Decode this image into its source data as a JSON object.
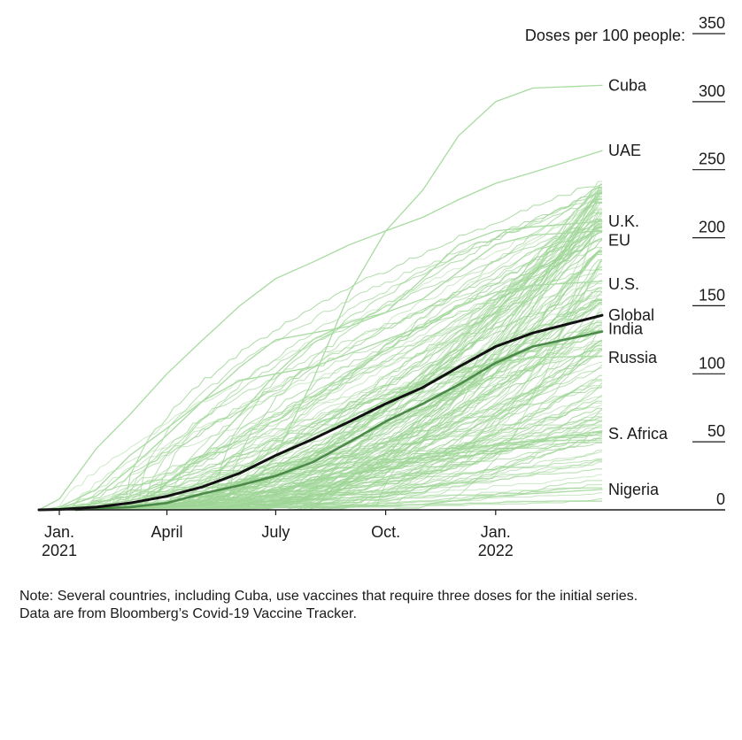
{
  "chart_data": {
    "type": "line",
    "ylabel": "Doses per 100 people:",
    "ylim": [
      0,
      350
    ],
    "y_ticks": [
      "0",
      "50",
      "100",
      "150",
      "200",
      "250",
      "300",
      "350"
    ],
    "x_range": [
      "2020-12-15",
      "2022-03-31"
    ],
    "x_ticks": [
      {
        "date": "2021-01-01",
        "line1": "Jan.",
        "line2": "2021"
      },
      {
        "date": "2021-04-01",
        "line1": "April",
        "line2": ""
      },
      {
        "date": "2021-07-01",
        "line1": "July",
        "line2": ""
      },
      {
        "date": "2021-10-01",
        "line1": "Oct.",
        "line2": ""
      },
      {
        "date": "2022-01-01",
        "line1": "Jan.",
        "line2": "2022"
      }
    ],
    "series": [
      {
        "name": "Cuba",
        "color": "#a8dba1",
        "points": [
          [
            "2021-05-15",
            0
          ],
          [
            "2021-06-01",
            8
          ],
          [
            "2021-07-01",
            40
          ],
          [
            "2021-08-01",
            95
          ],
          [
            "2021-09-01",
            160
          ],
          [
            "2021-10-01",
            205
          ],
          [
            "2021-11-01",
            235
          ],
          [
            "2021-12-01",
            275
          ],
          [
            "2022-01-01",
            300
          ],
          [
            "2022-02-01",
            310
          ],
          [
            "2022-03-31",
            312
          ]
        ]
      },
      {
        "name": "UAE",
        "color": "#a8dba1",
        "points": [
          [
            "2020-12-15",
            0
          ],
          [
            "2021-01-01",
            8
          ],
          [
            "2021-02-01",
            45
          ],
          [
            "2021-03-01",
            70
          ],
          [
            "2021-04-01",
            100
          ],
          [
            "2021-05-01",
            125
          ],
          [
            "2021-06-01",
            150
          ],
          [
            "2021-07-01",
            170
          ],
          [
            "2021-08-01",
            182
          ],
          [
            "2021-09-01",
            195
          ],
          [
            "2021-10-01",
            205
          ],
          [
            "2021-11-01",
            215
          ],
          [
            "2021-12-01",
            228
          ],
          [
            "2022-01-01",
            240
          ],
          [
            "2022-02-01",
            248
          ],
          [
            "2022-03-31",
            264
          ]
        ]
      },
      {
        "name": "U.K.",
        "color": "#a8dba1",
        "points": [
          [
            "2020-12-15",
            0
          ],
          [
            "2021-01-01",
            2
          ],
          [
            "2021-02-01",
            15
          ],
          [
            "2021-03-01",
            40
          ],
          [
            "2021-04-01",
            60
          ],
          [
            "2021-05-01",
            80
          ],
          [
            "2021-06-01",
            105
          ],
          [
            "2021-07-01",
            125
          ],
          [
            "2021-08-01",
            130
          ],
          [
            "2021-09-01",
            135
          ],
          [
            "2021-10-01",
            145
          ],
          [
            "2021-11-01",
            170
          ],
          [
            "2021-12-01",
            195
          ],
          [
            "2022-01-01",
            205
          ],
          [
            "2022-02-01",
            208
          ],
          [
            "2022-03-31",
            212
          ]
        ]
      },
      {
        "name": "EU",
        "color": "#a8dba1",
        "points": [
          [
            "2020-12-15",
            0
          ],
          [
            "2021-01-01",
            1
          ],
          [
            "2021-02-01",
            5
          ],
          [
            "2021-03-01",
            10
          ],
          [
            "2021-04-01",
            20
          ],
          [
            "2021-05-01",
            40
          ],
          [
            "2021-06-01",
            70
          ],
          [
            "2021-07-01",
            100
          ],
          [
            "2021-08-01",
            125
          ],
          [
            "2021-09-01",
            138
          ],
          [
            "2021-10-01",
            145
          ],
          [
            "2021-11-01",
            155
          ],
          [
            "2021-12-01",
            175
          ],
          [
            "2022-01-01",
            195
          ],
          [
            "2022-02-01",
            202
          ],
          [
            "2022-03-31",
            205
          ]
        ]
      },
      {
        "name": "U.S.",
        "color": "#a8dba1",
        "points": [
          [
            "2020-12-15",
            0
          ],
          [
            "2021-01-01",
            1
          ],
          [
            "2021-02-01",
            10
          ],
          [
            "2021-03-01",
            30
          ],
          [
            "2021-04-01",
            55
          ],
          [
            "2021-05-01",
            80
          ],
          [
            "2021-06-01",
            95
          ],
          [
            "2021-07-01",
            100
          ],
          [
            "2021-08-01",
            105
          ],
          [
            "2021-09-01",
            115
          ],
          [
            "2021-10-01",
            125
          ],
          [
            "2021-11-01",
            135
          ],
          [
            "2021-12-01",
            150
          ],
          [
            "2022-01-01",
            160
          ],
          [
            "2022-02-01",
            165
          ],
          [
            "2022-03-31",
            168
          ]
        ]
      },
      {
        "name": "India",
        "color": "#4c8a4a",
        "points": [
          [
            "2021-01-15",
            0
          ],
          [
            "2021-02-01",
            1
          ],
          [
            "2021-03-01",
            2
          ],
          [
            "2021-04-01",
            5
          ],
          [
            "2021-05-01",
            12
          ],
          [
            "2021-06-01",
            18
          ],
          [
            "2021-07-01",
            25
          ],
          [
            "2021-08-01",
            35
          ],
          [
            "2021-09-01",
            50
          ],
          [
            "2021-10-01",
            65
          ],
          [
            "2021-11-01",
            78
          ],
          [
            "2021-12-01",
            92
          ],
          [
            "2022-01-01",
            108
          ],
          [
            "2022-02-01",
            120
          ],
          [
            "2022-03-31",
            131
          ]
        ]
      },
      {
        "name": "Russia",
        "color": "#a8dba1",
        "points": [
          [
            "2020-12-15",
            0
          ],
          [
            "2021-01-01",
            1
          ],
          [
            "2021-02-01",
            3
          ],
          [
            "2021-03-01",
            7
          ],
          [
            "2021-04-01",
            12
          ],
          [
            "2021-05-01",
            20
          ],
          [
            "2021-06-01",
            28
          ],
          [
            "2021-07-01",
            40
          ],
          [
            "2021-08-01",
            55
          ],
          [
            "2021-09-01",
            68
          ],
          [
            "2021-10-01",
            80
          ],
          [
            "2021-11-01",
            92
          ],
          [
            "2021-12-01",
            102
          ],
          [
            "2022-01-01",
            108
          ],
          [
            "2022-02-01",
            112
          ],
          [
            "2022-03-31",
            113
          ]
        ]
      },
      {
        "name": "S. Africa",
        "color": "#a8dba1",
        "points": [
          [
            "2021-02-15",
            0
          ],
          [
            "2021-03-01",
            0.5
          ],
          [
            "2021-04-01",
            1
          ],
          [
            "2021-05-01",
            2
          ],
          [
            "2021-06-01",
            5
          ],
          [
            "2021-07-01",
            10
          ],
          [
            "2021-08-01",
            18
          ],
          [
            "2021-09-01",
            28
          ],
          [
            "2021-10-01",
            35
          ],
          [
            "2021-11-01",
            40
          ],
          [
            "2021-12-01",
            44
          ],
          [
            "2022-01-01",
            48
          ],
          [
            "2022-02-01",
            51
          ],
          [
            "2022-03-31",
            58
          ]
        ]
      },
      {
        "name": "Nigeria",
        "color": "#a8dba1",
        "points": [
          [
            "2021-03-01",
            0
          ],
          [
            "2021-04-01",
            0.5
          ],
          [
            "2021-05-01",
            1
          ],
          [
            "2021-06-01",
            1.5
          ],
          [
            "2021-07-01",
            2
          ],
          [
            "2021-08-01",
            2.2
          ],
          [
            "2021-09-01",
            2.5
          ],
          [
            "2021-10-01",
            3
          ],
          [
            "2021-11-01",
            4
          ],
          [
            "2021-12-01",
            7
          ],
          [
            "2022-01-01",
            10
          ],
          [
            "2022-02-01",
            12
          ],
          [
            "2022-03-31",
            15
          ]
        ]
      },
      {
        "name": "Global",
        "color": "#111111",
        "points": [
          [
            "2020-12-15",
            0
          ],
          [
            "2021-01-01",
            0.3
          ],
          [
            "2021-02-01",
            2
          ],
          [
            "2021-03-01",
            5
          ],
          [
            "2021-04-01",
            10
          ],
          [
            "2021-05-01",
            17
          ],
          [
            "2021-06-01",
            27
          ],
          [
            "2021-07-01",
            40
          ],
          [
            "2021-08-01",
            52
          ],
          [
            "2021-09-01",
            65
          ],
          [
            "2021-10-01",
            78
          ],
          [
            "2021-11-01",
            90
          ],
          [
            "2021-12-01",
            105
          ],
          [
            "2022-01-01",
            120
          ],
          [
            "2022-02-01",
            130
          ],
          [
            "2022-03-31",
            143
          ]
        ]
      }
    ],
    "end_labels": [
      {
        "text": "Cuba",
        "value": 312
      },
      {
        "text": "UAE",
        "value": 264
      },
      {
        "text": "U.K.",
        "value": 212
      },
      {
        "text": "EU",
        "value": 198
      },
      {
        "text": "U.S.",
        "value": 166
      },
      {
        "text": "Global",
        "value": 143
      },
      {
        "text": "India",
        "value": 133
      },
      {
        "text": "Russia",
        "value": 112
      },
      {
        "text": "S. Africa",
        "value": 56
      },
      {
        "text": "Nigeria",
        "value": 15
      }
    ]
  },
  "colors": {
    "background_lines": "#9ed596",
    "global": "#111111",
    "india": "#4c8a4a",
    "axis": "#1a1a1a",
    "text": "#1a1a1a"
  },
  "note": {
    "line1": "Note: Several countries, including Cuba, use vaccines that require three doses for the initial series.",
    "line2": "Data are from Bloomberg’s Covid-19 Vaccine Tracker."
  }
}
